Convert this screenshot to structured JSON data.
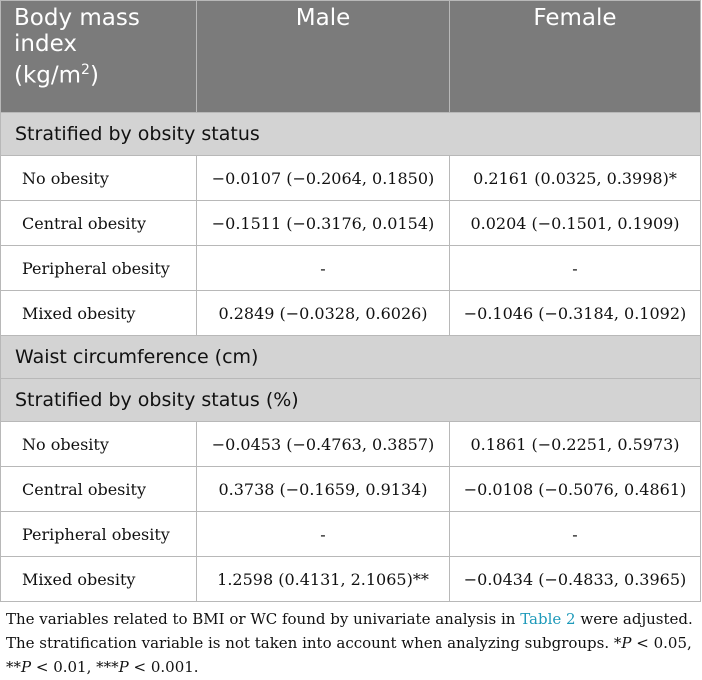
{
  "header": {
    "col1_line1": "Body mass",
    "col1_line2": "index",
    "col1_line3_prefix": "(kg/m",
    "col1_line3_sup": "2",
    "col1_line3_suffix": ")",
    "col2": "Male",
    "col3": "Female"
  },
  "sections": {
    "s1": "Stratified by obsity status",
    "s2": "Waist circumference (cm)",
    "s3": "Stratified by obsity status (%)"
  },
  "bmi_rows": [
    {
      "label": "No obesity",
      "male": "−0.0107 (−0.2064, 0.1850)",
      "female": "0.2161 (0.0325, 0.3998)*"
    },
    {
      "label": "Central obesity",
      "male": "−0.1511 (−0.3176, 0.0154)",
      "female": "0.0204 (−0.1501, 0.1909)"
    },
    {
      "label": "Peripheral obesity",
      "male": "-",
      "female": "-"
    },
    {
      "label": "Mixed obesity",
      "male": "0.2849 (−0.0328, 0.6026)",
      "female": "−0.1046 (−0.3184, 0.1092)"
    }
  ],
  "wc_rows": [
    {
      "label": "No obesity",
      "male": "−0.0453 (−0.4763, 0.3857)",
      "female": "0.1861 (−0.2251, 0.5973)"
    },
    {
      "label": "Central obesity",
      "male": "0.3738 (−0.1659, 0.9134)",
      "female": "−0.0108 (−0.5076, 0.4861)"
    },
    {
      "label": "Peripheral obesity",
      "male": "-",
      "female": "-"
    },
    {
      "label": "Mixed obesity",
      "male": "1.2598 (0.4131, 2.1065)**",
      "female": "−0.0434 (−0.4833, 0.3965)"
    }
  ],
  "footnote": {
    "part1": "The variables related to BMI or WC found by univariate analysis in ",
    "link": "Table 2",
    "part2": " were adjusted. The stratification variable is not taken into account when analyzing subgroups. *",
    "p1": "P",
    "t1": " < 0.05, **",
    "p2": "P",
    "t2": " < 0.01, ***",
    "p3": "P",
    "t3": " < 0.001."
  }
}
